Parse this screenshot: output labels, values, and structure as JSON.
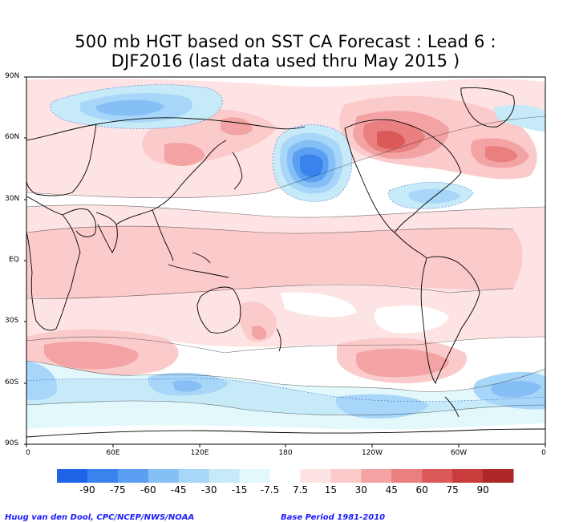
{
  "title": {
    "line1": "500 mb HGT based on SST CA Forecast : Lead 6 :",
    "line2": "DJF2016 (last data used thru May 2015 )"
  },
  "axes": {
    "y_labels": [
      "90N",
      "60N",
      "30N",
      "EQ",
      "30S",
      "60S",
      "90S"
    ],
    "x_labels": [
      "0",
      "60E",
      "120E",
      "180",
      "120W",
      "60W",
      "0"
    ]
  },
  "legend": {
    "levels": [
      "-90",
      "-75",
      "-60",
      "-45",
      "-30",
      "-15",
      "-7.5",
      "7.5",
      "15",
      "30",
      "45",
      "60",
      "75",
      "90"
    ],
    "colors": [
      "#1f64e6",
      "#3a82ee",
      "#5a9ff2",
      "#86bff6",
      "#a8d6f8",
      "#c6eaf8",
      "#e2f8fb",
      "#ffffff",
      "#fde3e3",
      "#fbcaca",
      "#f3a3a3",
      "#e97f7f",
      "#dc5959",
      "#c83c3c",
      "#ae2626"
    ]
  },
  "footer": {
    "left": "Huug van den Dool, CPC/NCEP/NWS/NOAA",
    "right": "Base Period 1981-2010"
  },
  "colors": {
    "outline": "#000000",
    "background": "#ffffff"
  }
}
